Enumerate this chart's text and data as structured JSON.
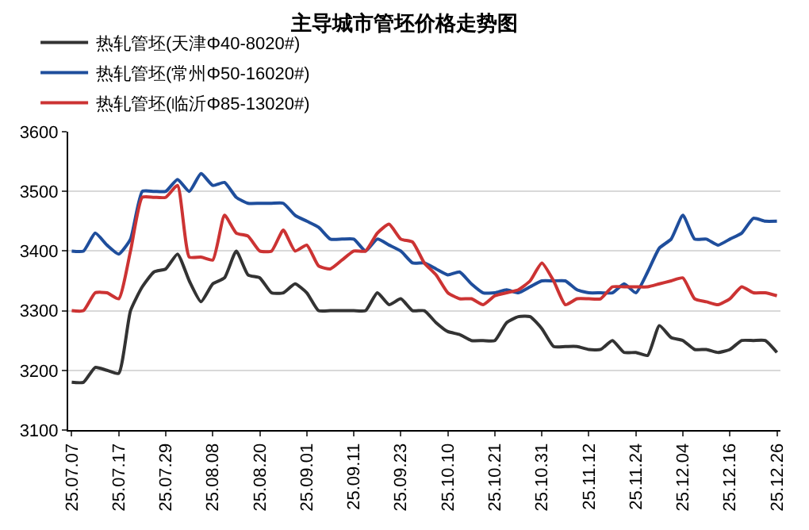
{
  "chart_data": {
    "type": "line",
    "title": "主导城市管坯价格走势图",
    "categories": [
      "25.07.07",
      null,
      null,
      null,
      "25.07.17",
      null,
      null,
      null,
      "25.07.29",
      null,
      null,
      null,
      "25.08.08",
      null,
      null,
      null,
      "25.08.20",
      null,
      null,
      null,
      "25.09.01",
      null,
      null,
      null,
      "25.09.11",
      null,
      null,
      null,
      "25.09.23",
      null,
      null,
      null,
      "25.10.10",
      null,
      null,
      null,
      "25.10.21",
      null,
      null,
      null,
      "25.10.31",
      null,
      null,
      null,
      "25.11.12",
      null,
      null,
      null,
      "25.11.24",
      null,
      null,
      null,
      "25.12.04",
      null,
      null,
      null,
      "25.12.16",
      null,
      null,
      null,
      "25.12.26"
    ],
    "series": [
      {
        "name": "热轧管坯(天津Φ40-8020#)",
        "color": "#333333",
        "values": [
          3180,
          3180,
          3205,
          3200,
          3195,
          3300,
          3340,
          3365,
          3370,
          3395,
          3350,
          3315,
          3345,
          3355,
          3400,
          3360,
          3355,
          3330,
          3330,
          3345,
          3330,
          3300,
          3300,
          3300,
          3300,
          3300,
          3330,
          3310,
          3320,
          3300,
          3300,
          3280,
          3265,
          3260,
          3250,
          3250,
          3250,
          3280,
          3290,
          3290,
          3270,
          3240,
          3240,
          3240,
          3235,
          3235,
          3250,
          3230,
          3230,
          3225,
          3275,
          3255,
          3250,
          3235,
          3235,
          3230,
          3235,
          3250,
          3250,
          3250,
          3230
        ]
      },
      {
        "name": "热轧管坯(常州Φ50-16020#)",
        "color": "#1f4e9c",
        "values": [
          3400,
          3400,
          3430,
          3410,
          3395,
          3420,
          3500,
          3500,
          3500,
          3520,
          3500,
          3530,
          3510,
          3515,
          3490,
          3480,
          3480,
          3480,
          3480,
          3460,
          3450,
          3440,
          3420,
          3420,
          3420,
          3400,
          3420,
          3410,
          3400,
          3380,
          3380,
          3370,
          3360,
          3365,
          3345,
          3330,
          3330,
          3335,
          3330,
          3340,
          3350,
          3350,
          3350,
          3335,
          3330,
          3330,
          3330,
          3345,
          3330,
          3365,
          3405,
          3420,
          3460,
          3420,
          3420,
          3410,
          3420,
          3430,
          3455,
          3450,
          3450
        ]
      },
      {
        "name": "热轧管坯(临沂Φ85-13020#)",
        "color": "#cc3333",
        "values": [
          3300,
          3300,
          3330,
          3330,
          3320,
          3400,
          3490,
          3490,
          3490,
          3510,
          3390,
          3390,
          3385,
          3460,
          3430,
          3425,
          3400,
          3400,
          3435,
          3400,
          3410,
          3375,
          3370,
          3385,
          3400,
          3400,
          3430,
          3445,
          3420,
          3415,
          3380,
          3360,
          3330,
          3320,
          3320,
          3310,
          3325,
          3330,
          3335,
          3350,
          3380,
          3350,
          3310,
          3320,
          3320,
          3320,
          3340,
          3340,
          3340,
          3340,
          3345,
          3350,
          3355,
          3320,
          3315,
          3310,
          3320,
          3340,
          3330,
          3330,
          3325
        ]
      }
    ],
    "ylim": [
      3100,
      3600
    ],
    "yticks": [
      3100,
      3200,
      3300,
      3400,
      3500,
      3600
    ],
    "grid": "y",
    "legend": "top",
    "marker": "none",
    "line_style": "solid"
  }
}
